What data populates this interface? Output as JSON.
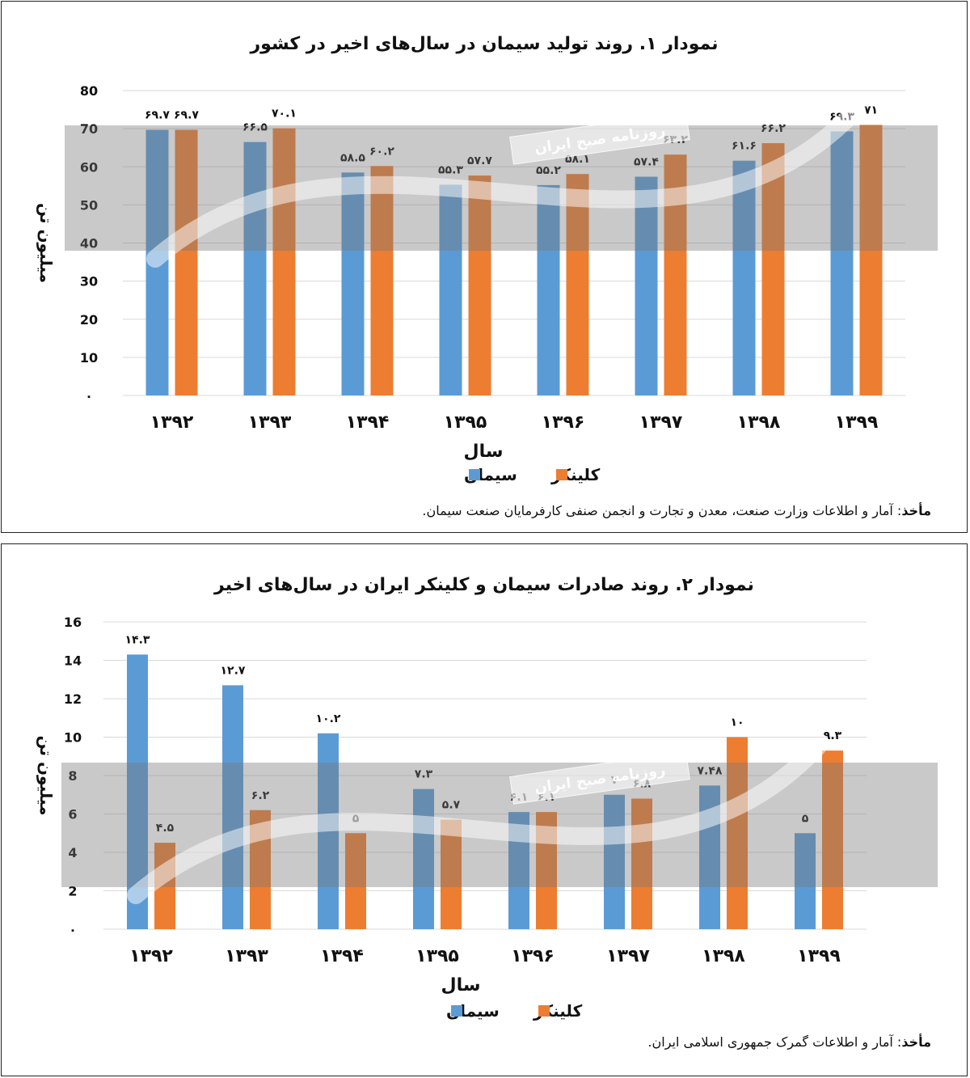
{
  "chart_data": [
    {
      "type": "bar",
      "title": "نمودار ۱. روند تولید سیمان در سال‌های اخیر در کشور",
      "xlabel": "سال",
      "ylabel": "میلیون تن",
      "categories": [
        "۱۳۹۲",
        "۱۳۹۳",
        "۱۳۹۴",
        "۱۳۹۵",
        "۱۳۹۶",
        "۱۳۹۷",
        "۱۳۹۸",
        "۱۳۹۹"
      ],
      "yticks": [
        "۰",
        "10",
        "20",
        "30",
        "40",
        "50",
        "60",
        "70",
        "80"
      ],
      "ylim": [
        0,
        80
      ],
      "grid": true,
      "legend_position": "bottom",
      "series": [
        {
          "name": "سیمان",
          "color": "#5b9bd5",
          "values": [
            69.7,
            66.5,
            58.5,
            55.3,
            55.2,
            57.4,
            61.6,
            69.3
          ],
          "labels": [
            "۶۹.۷",
            "۶۶.۵",
            "۵۸.۵",
            "۵۵.۳",
            "۵۵.۲",
            "۵۷.۴",
            "۶۱.۶",
            "۶۹.۳"
          ]
        },
        {
          "name": "کلینکر",
          "color": "#ed7d31",
          "values": [
            69.7,
            70.1,
            60.2,
            57.7,
            58.1,
            63.2,
            66.2,
            71
          ],
          "labels": [
            "۶۹.۷",
            "۷۰.۱",
            "۶۰.۲",
            "۵۷.۷",
            "۵۸.۱",
            "۶۳.۲",
            "۶۶.۲",
            "۷۱"
          ]
        }
      ],
      "source_label": "مأخذ",
      "source_text": ": آمار و اطلاعات وزارت صنعت، معدن و تجارت و انجمن صنفی کارفرمایان صنعت سیمان."
    },
    {
      "type": "bar",
      "title": "نمودار ۲. روند صادرات سیمان و کلینکر ایران در سال‌های اخیر",
      "xlabel": "سال",
      "ylabel": "میلیون تن",
      "categories": [
        "۱۳۹۲",
        "۱۳۹۳",
        "۱۳۹۴",
        "۱۳۹۵",
        "۱۳۹۶",
        "۱۳۹۷",
        "۱۳۹۸",
        "۱۳۹۹"
      ],
      "yticks": [
        "۰",
        "2",
        "4",
        "6",
        "8",
        "10",
        "12",
        "14",
        "16"
      ],
      "ylim": [
        0,
        16
      ],
      "grid": true,
      "legend_position": "bottom",
      "series": [
        {
          "name": "سیمان",
          "color": "#5b9bd5",
          "values": [
            14.3,
            12.7,
            10.2,
            7.3,
            6.1,
            7,
            7.48,
            5
          ],
          "labels": [
            "۱۴.۳",
            "۱۲.۷",
            "۱۰.۲",
            "۷.۳",
            "۶.۱",
            "۷",
            "۷.۴۸",
            "۵"
          ]
        },
        {
          "name": "کلینکر",
          "color": "#ed7d31",
          "values": [
            4.5,
            6.2,
            5,
            5.7,
            6.1,
            6.8,
            10,
            9.3
          ],
          "labels": [
            "۴.۵",
            "۶.۲",
            "۵",
            "۵.۷",
            "۶.۱",
            "۶.۸",
            "۱۰",
            "۹.۳"
          ]
        }
      ],
      "source_label": "مأخذ",
      "source_text": ": آمار و اطلاعات گمرک جمهوری اسلامی ایران."
    }
  ],
  "watermark_text": "روزنامه صبح ایران"
}
